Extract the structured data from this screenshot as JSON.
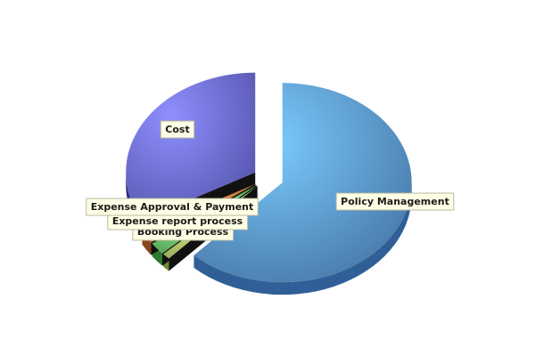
{
  "chart_data": {
    "type": "pie",
    "style": "3d-exploded",
    "title": "",
    "legend": "none",
    "slices": [
      {
        "label": "Policy Management",
        "value": 62.0,
        "color": "#5a96d2",
        "side_color": "#2f5f96"
      },
      {
        "label": "Booking Process",
        "value": 1.0,
        "color": "#b7d36e",
        "side_color": "#6f8a2f"
      },
      {
        "label": "Expense report process",
        "value": 2.0,
        "color": "#6acb6a",
        "side_color": "#2f7a2f"
      },
      {
        "label": "Expense Approval & Payment",
        "value": 2.0,
        "color": "#e07d3c",
        "side_color": "#8a4520"
      },
      {
        "label": "Cost",
        "value": 33.0,
        "color": "#6a6ad8",
        "side_color": "#2b2b7a"
      }
    ]
  }
}
